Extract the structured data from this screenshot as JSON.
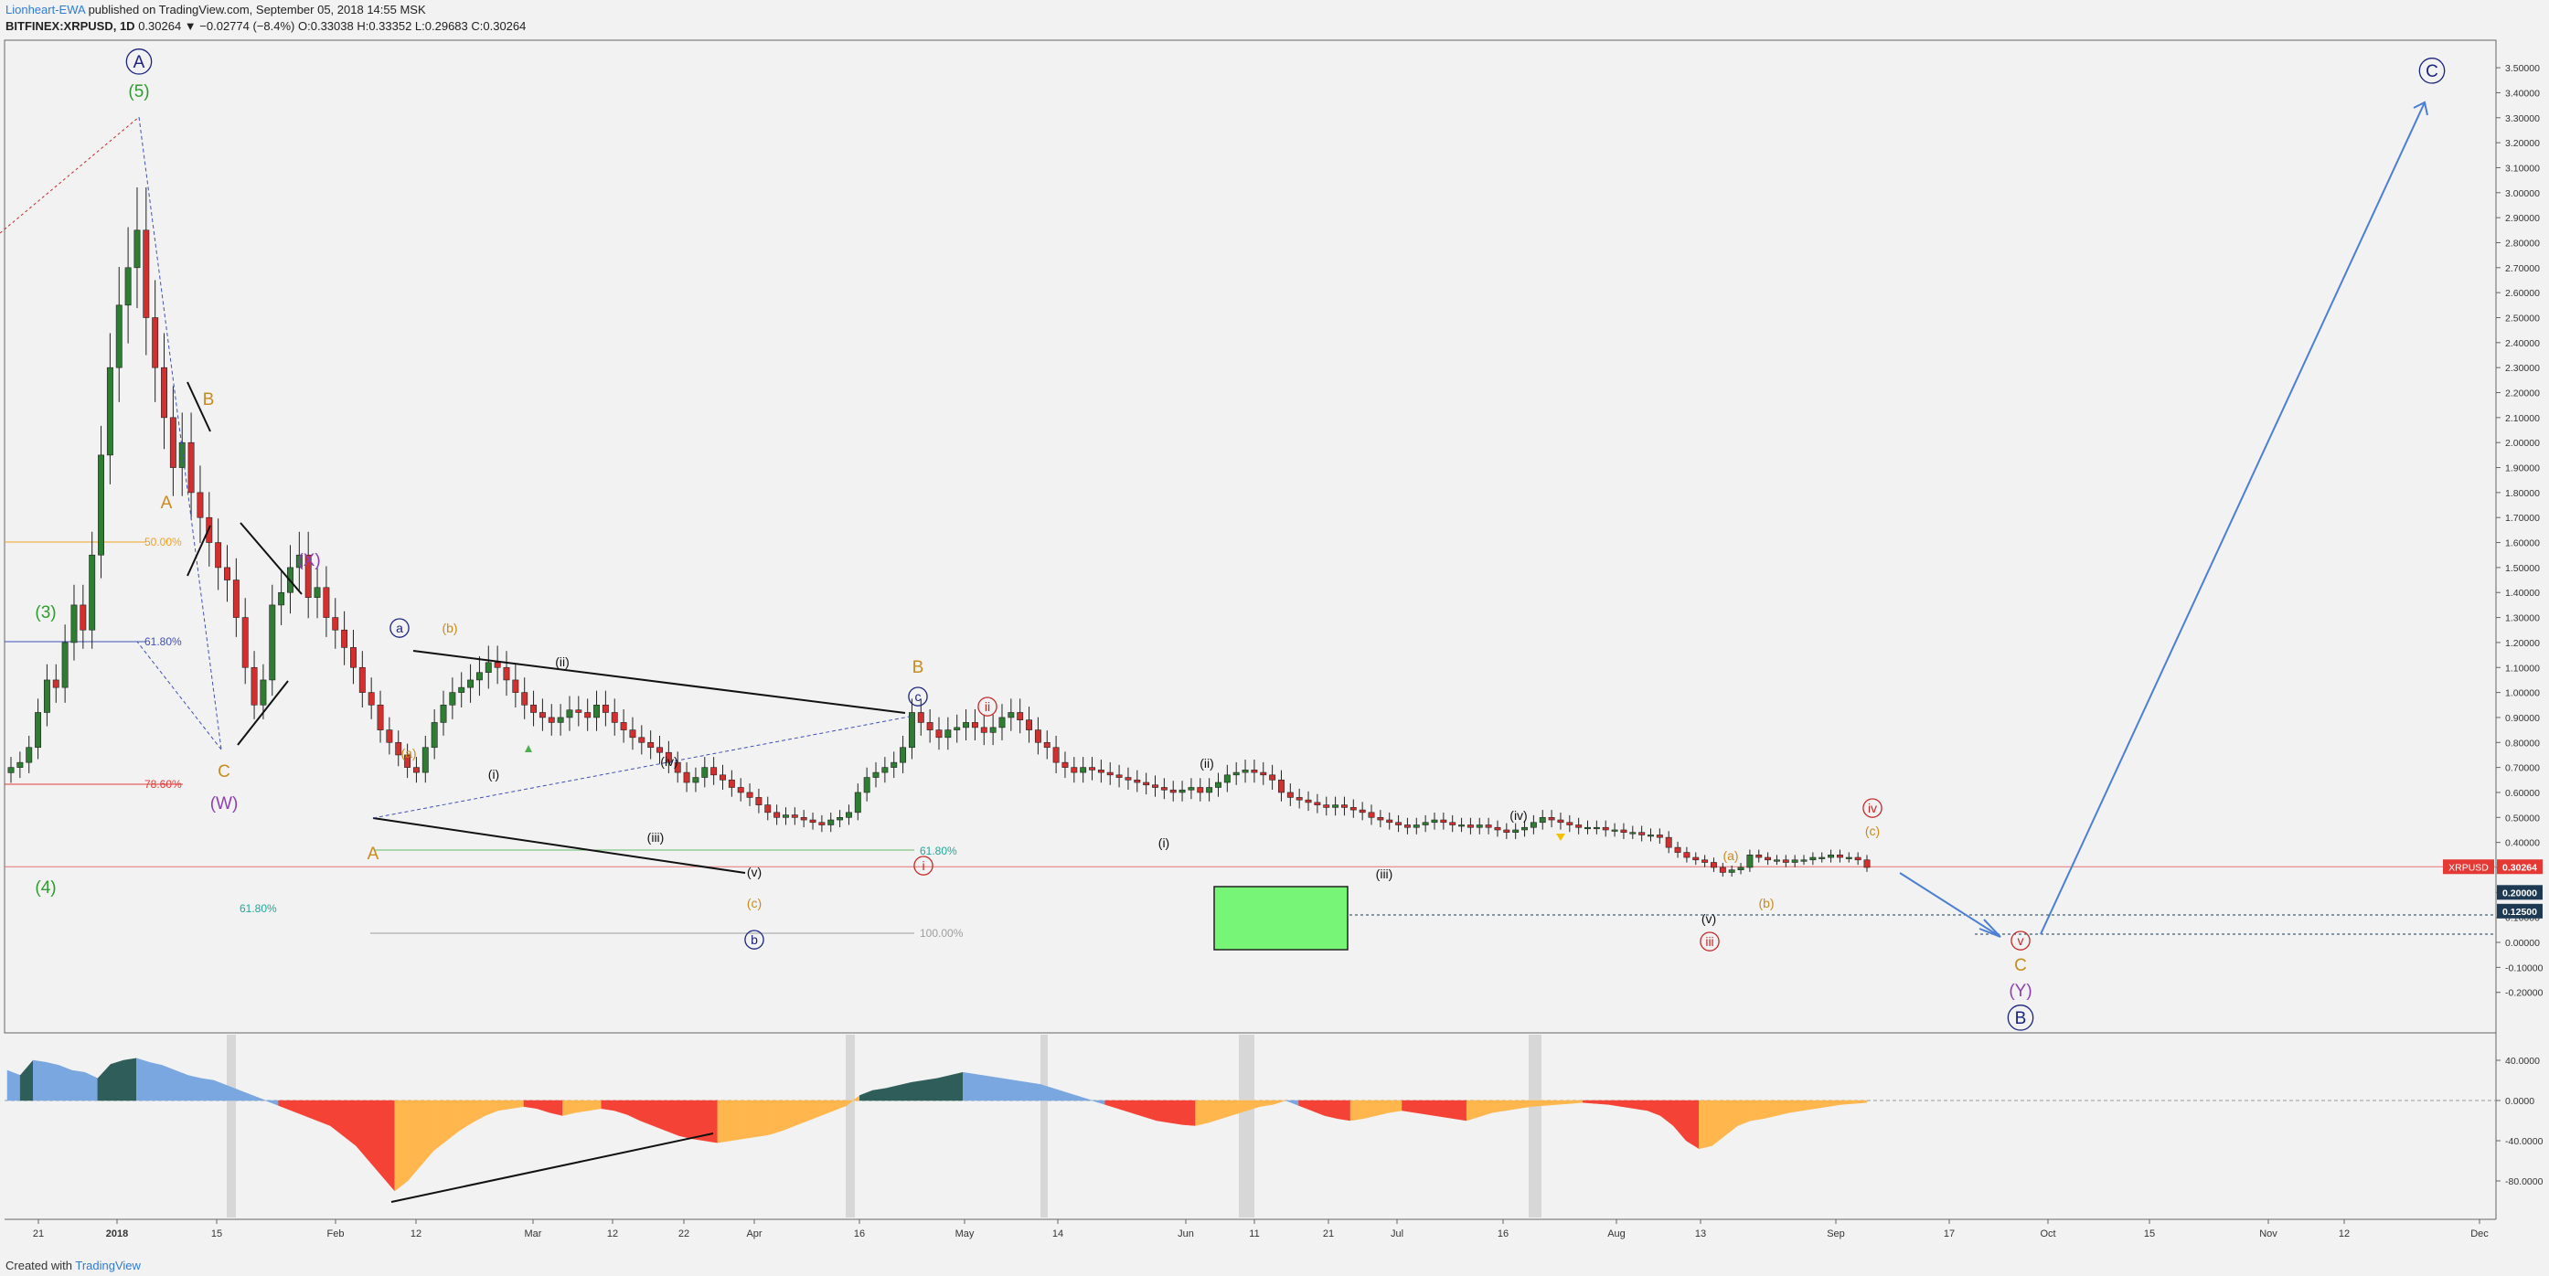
{
  "header": {
    "author": "Lionheart-EWA",
    "published": "published on TradingView.com, September 05, 2018 14:55 MSK",
    "symbol": "BITFINEX:XRPUSD, 1D",
    "change": "0.30264 ▼ −0.02774 (−8.4%)",
    "ohlc": "O:0.33038 H:0.33352 L:0.29683 C:0.30264"
  },
  "footer": {
    "created_with": "Created with",
    "brand": "TradingView"
  },
  "colors": {
    "up": "#2e7d32",
    "down": "#d32f2f",
    "wave_blue": "#1a237e",
    "wave_green": "#2e9d2e",
    "wave_orange": "#c98a1e",
    "wave_purple": "#8e3fb5",
    "wave_red": "#c62828",
    "osc_dark": "#2f5e5a",
    "osc_blue": "#7aa7e0",
    "osc_red": "#f44336",
    "osc_orange": "#ffb74d"
  },
  "price_axis": {
    "ticks": [
      "3.50000",
      "3.40000",
      "3.30000",
      "3.20000",
      "3.10000",
      "3.00000",
      "2.90000",
      "2.80000",
      "2.70000",
      "2.60000",
      "2.50000",
      "2.40000",
      "2.30000",
      "2.20000",
      "2.10000",
      "2.00000",
      "1.90000",
      "1.80000",
      "1.70000",
      "1.60000",
      "1.50000",
      "1.40000",
      "1.30000",
      "1.20000",
      "1.10000",
      "1.00000",
      "0.90000",
      "0.80000",
      "0.70000",
      "0.60000",
      "0.50000",
      "0.40000",
      "0.30000",
      "0.20000",
      "0.10000",
      "0.00000",
      "-0.10000",
      "-0.20000"
    ],
    "badges": [
      {
        "label": "XRPUSD",
        "value": "0.30264",
        "color": "#e53935"
      },
      {
        "label": "",
        "value": "0.20000",
        "color": "#1d3a52"
      },
      {
        "label": "",
        "value": "0.12500",
        "color": "#1d3a52"
      }
    ]
  },
  "osc_axis": {
    "ticks": [
      "40.0000",
      "0.0000",
      "-40.0000",
      "-80.0000"
    ]
  },
  "time_axis": {
    "ticks": [
      "21",
      "2018",
      "15",
      "Feb",
      "12",
      "Mar",
      "12",
      "22",
      "Apr",
      "16",
      "May",
      "14",
      "Jun",
      "11",
      "21",
      "Jul",
      "16",
      "Aug",
      "13",
      "Sep",
      "17",
      "Oct",
      "15",
      "Nov",
      "12",
      "Dec"
    ]
  },
  "fib_labels": [
    {
      "text": "50.00%",
      "color": "#f0a020"
    },
    {
      "text": "61.80%",
      "color": "#3f51b5"
    },
    {
      "text": "78.60%",
      "color": "#e53935"
    },
    {
      "text": "61.80%",
      "color": "#26a69a"
    },
    {
      "text": "61.80%",
      "color": "#26a69a"
    },
    {
      "text": "100.00%",
      "color": "#9e9e9e"
    }
  ],
  "wave_labels": {
    "A_circle": "A",
    "five": "(5)",
    "three": "(3)",
    "four": "(4)",
    "B": "B",
    "A1": "A",
    "C1": "C",
    "W": "(W)",
    "X": "(X)",
    "a_circ": "a",
    "b_par": "(b)",
    "a_par": "(a)",
    "ii": "(ii)",
    "i": "(i)",
    "iv": "(iv)",
    "iii": "(iii)",
    "v": "(v)",
    "A2": "A",
    "c_par": "(c)",
    "b_circ": "b",
    "B2": "B",
    "c_circ": "c",
    "ii_circ": "ii",
    "i_circ": "i",
    "ii2": "(ii)",
    "i2": "(i)",
    "iii2": "(iii)",
    "iv2": "(iv)",
    "a2": "(a)",
    "b2": "(b)",
    "v2": "(v)",
    "iii_circ": "iii",
    "iv_circ": "iv",
    "c2": "(c)",
    "v_circ": "v",
    "C2": "C",
    "Y": "(Y)",
    "B_circle": "B",
    "C_circle": "C"
  },
  "chart_data": {
    "type": "candlestick",
    "title": "BITFINEX:XRPUSD, 1D",
    "ylabel": "",
    "xlabel": "",
    "ylim": [
      -0.25,
      3.6
    ],
    "grid": false,
    "x_range": [
      "2017-12-18",
      "2018-12-20"
    ],
    "key_levels": [
      0.30264,
      0.2,
      0.125
    ],
    "closes": [
      0.7,
      0.72,
      0.78,
      0.92,
      1.05,
      1.02,
      1.2,
      1.35,
      1.25,
      1.55,
      1.95,
      2.3,
      2.55,
      2.7,
      2.85,
      2.5,
      2.3,
      2.1,
      1.9,
      2.0,
      1.8,
      1.7,
      1.6,
      1.5,
      1.45,
      1.3,
      1.1,
      0.95,
      1.05,
      1.35,
      1.4,
      1.5,
      1.55,
      1.38,
      1.42,
      1.3,
      1.25,
      1.18,
      1.1,
      1.0,
      0.95,
      0.85,
      0.8,
      0.75,
      0.7,
      0.68,
      0.78,
      0.88,
      0.95,
      1.0,
      1.02,
      1.05,
      1.08,
      1.12,
      1.1,
      1.05,
      1.0,
      0.95,
      0.92,
      0.9,
      0.88,
      0.9,
      0.93,
      0.92,
      0.9,
      0.95,
      0.92,
      0.88,
      0.85,
      0.82,
      0.8,
      0.78,
      0.76,
      0.72,
      0.68,
      0.64,
      0.66,
      0.7,
      0.67,
      0.65,
      0.62,
      0.6,
      0.58,
      0.55,
      0.52,
      0.5,
      0.51,
      0.5,
      0.49,
      0.48,
      0.47,
      0.49,
      0.5,
      0.52,
      0.6,
      0.66,
      0.68,
      0.7,
      0.72,
      0.78,
      0.92,
      0.88,
      0.85,
      0.82,
      0.85,
      0.86,
      0.88,
      0.86,
      0.84,
      0.86,
      0.9,
      0.92,
      0.89,
      0.85,
      0.8,
      0.78,
      0.72,
      0.7,
      0.68,
      0.7,
      0.69,
      0.68,
      0.67,
      0.66,
      0.65,
      0.64,
      0.63,
      0.62,
      0.61,
      0.6,
      0.61,
      0.62,
      0.6,
      0.62,
      0.64,
      0.67,
      0.68,
      0.69,
      0.68,
      0.67,
      0.65,
      0.6,
      0.58,
      0.57,
      0.56,
      0.55,
      0.54,
      0.55,
      0.54,
      0.53,
      0.52,
      0.5,
      0.49,
      0.48,
      0.47,
      0.46,
      0.47,
      0.48,
      0.49,
      0.48,
      0.47,
      0.47,
      0.46,
      0.47,
      0.46,
      0.45,
      0.44,
      0.45,
      0.46,
      0.48,
      0.5,
      0.49,
      0.48,
      0.47,
      0.46,
      0.46,
      0.46,
      0.45,
      0.45,
      0.44,
      0.44,
      0.43,
      0.43,
      0.42,
      0.38,
      0.36,
      0.34,
      0.33,
      0.32,
      0.3,
      0.28,
      0.29,
      0.3,
      0.35,
      0.34,
      0.33,
      0.33,
      0.32,
      0.33,
      0.33,
      0.34,
      0.34,
      0.35,
      0.34,
      0.34,
      0.33,
      0.3
    ],
    "oscillator": [
      30,
      25,
      40,
      38,
      35,
      30,
      28,
      22,
      36,
      40,
      42,
      38,
      35,
      30,
      25,
      22,
      20,
      15,
      10,
      5,
      0,
      -5,
      -10,
      -15,
      -20,
      -25,
      -35,
      -45,
      -60,
      -75,
      -90,
      -80,
      -65,
      -50,
      -40,
      -30,
      -22,
      -15,
      -10,
      -8,
      -6,
      -8,
      -12,
      -15,
      -12,
      -10,
      -8,
      -10,
      -14,
      -20,
      -25,
      -30,
      -35,
      -38,
      -40,
      -42,
      -40,
      -38,
      -36,
      -34,
      -30,
      -25,
      -20,
      -15,
      -10,
      -5,
      5,
      10,
      12,
      15,
      18,
      20,
      22,
      25,
      28,
      26,
      24,
      22,
      20,
      18,
      16,
      12,
      8,
      4,
      0,
      -4,
      -8,
      -12,
      -16,
      -20,
      -22,
      -24,
      -25,
      -22,
      -18,
      -14,
      -10,
      -6,
      -4,
      0,
      -5,
      -10,
      -15,
      -18,
      -20,
      -18,
      -15,
      -12,
      -10,
      -12,
      -14,
      -16,
      -18,
      -20,
      -16,
      -12,
      -10,
      -8,
      -6,
      -5,
      -4,
      -3,
      -2,
      -3,
      -4,
      -6,
      -8,
      -10,
      -15,
      -25,
      -40,
      -48,
      -45,
      -35,
      -25,
      -20,
      -18,
      -15,
      -12,
      -10,
      -8,
      -6,
      -4,
      -3,
      -2
    ]
  }
}
